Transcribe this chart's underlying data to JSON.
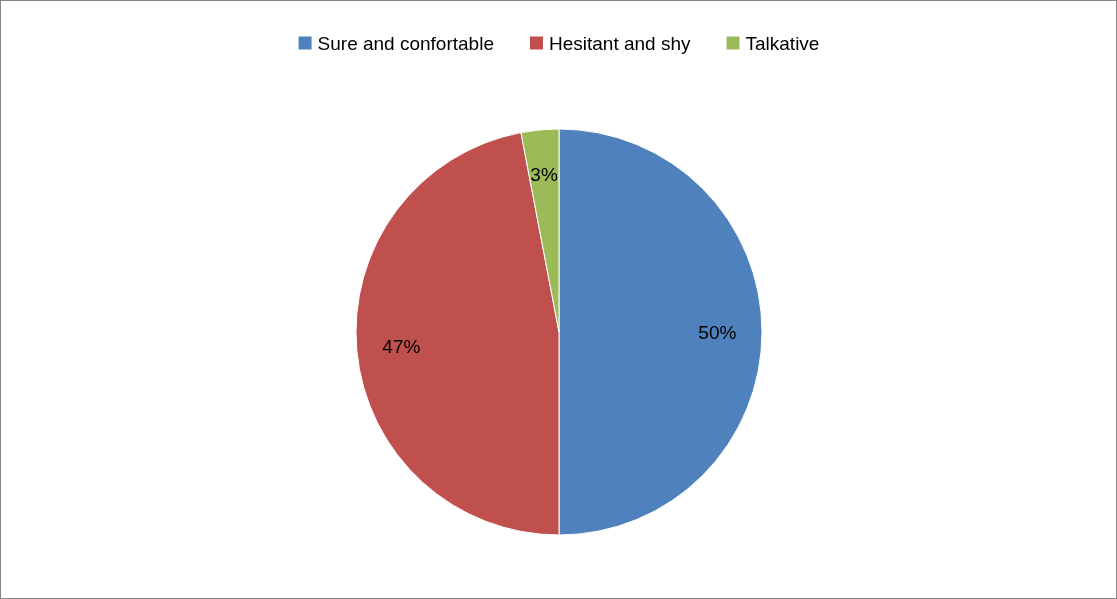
{
  "chart_data": {
    "type": "pie",
    "categories": [
      "Sure and confortable",
      "Hesitant and shy",
      "Talkative"
    ],
    "values": [
      50,
      47,
      3
    ],
    "colors": [
      "#4f81bd",
      "#c0504d",
      "#9bbb59"
    ],
    "value_labels": [
      "50%",
      "47%",
      "3%"
    ],
    "legend": "top"
  }
}
